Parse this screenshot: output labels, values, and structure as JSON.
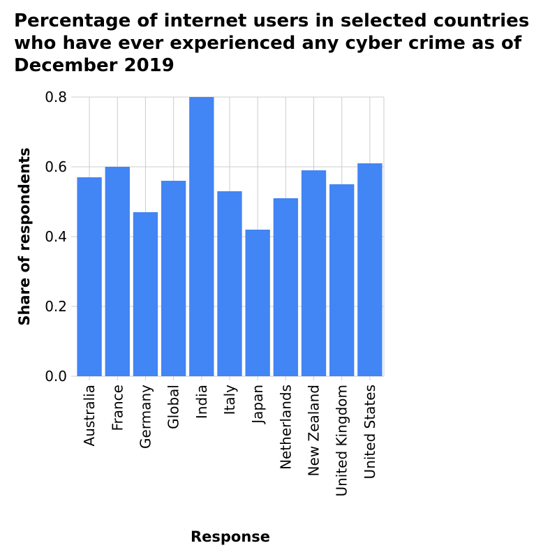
{
  "chart_data": {
    "type": "bar",
    "title": "Percentage of internet users in selected countries who have ever experienced any cyber crime as of December 2019",
    "xlabel": "Response",
    "ylabel": "Share of respondents",
    "categories": [
      "Australia",
      "France",
      "Germany",
      "Global",
      "India",
      "Italy",
      "Japan",
      "Netherlands",
      "New Zealand",
      "United Kingdom",
      "United States"
    ],
    "values": [
      0.57,
      0.6,
      0.47,
      0.56,
      0.8,
      0.53,
      0.42,
      0.51,
      0.59,
      0.55,
      0.61
    ],
    "ylim": [
      0,
      0.8
    ],
    "yticks": [
      "0.0",
      "0.2",
      "0.4",
      "0.6",
      "0.8"
    ],
    "bar_color": "#4285f4",
    "grid": true
  }
}
